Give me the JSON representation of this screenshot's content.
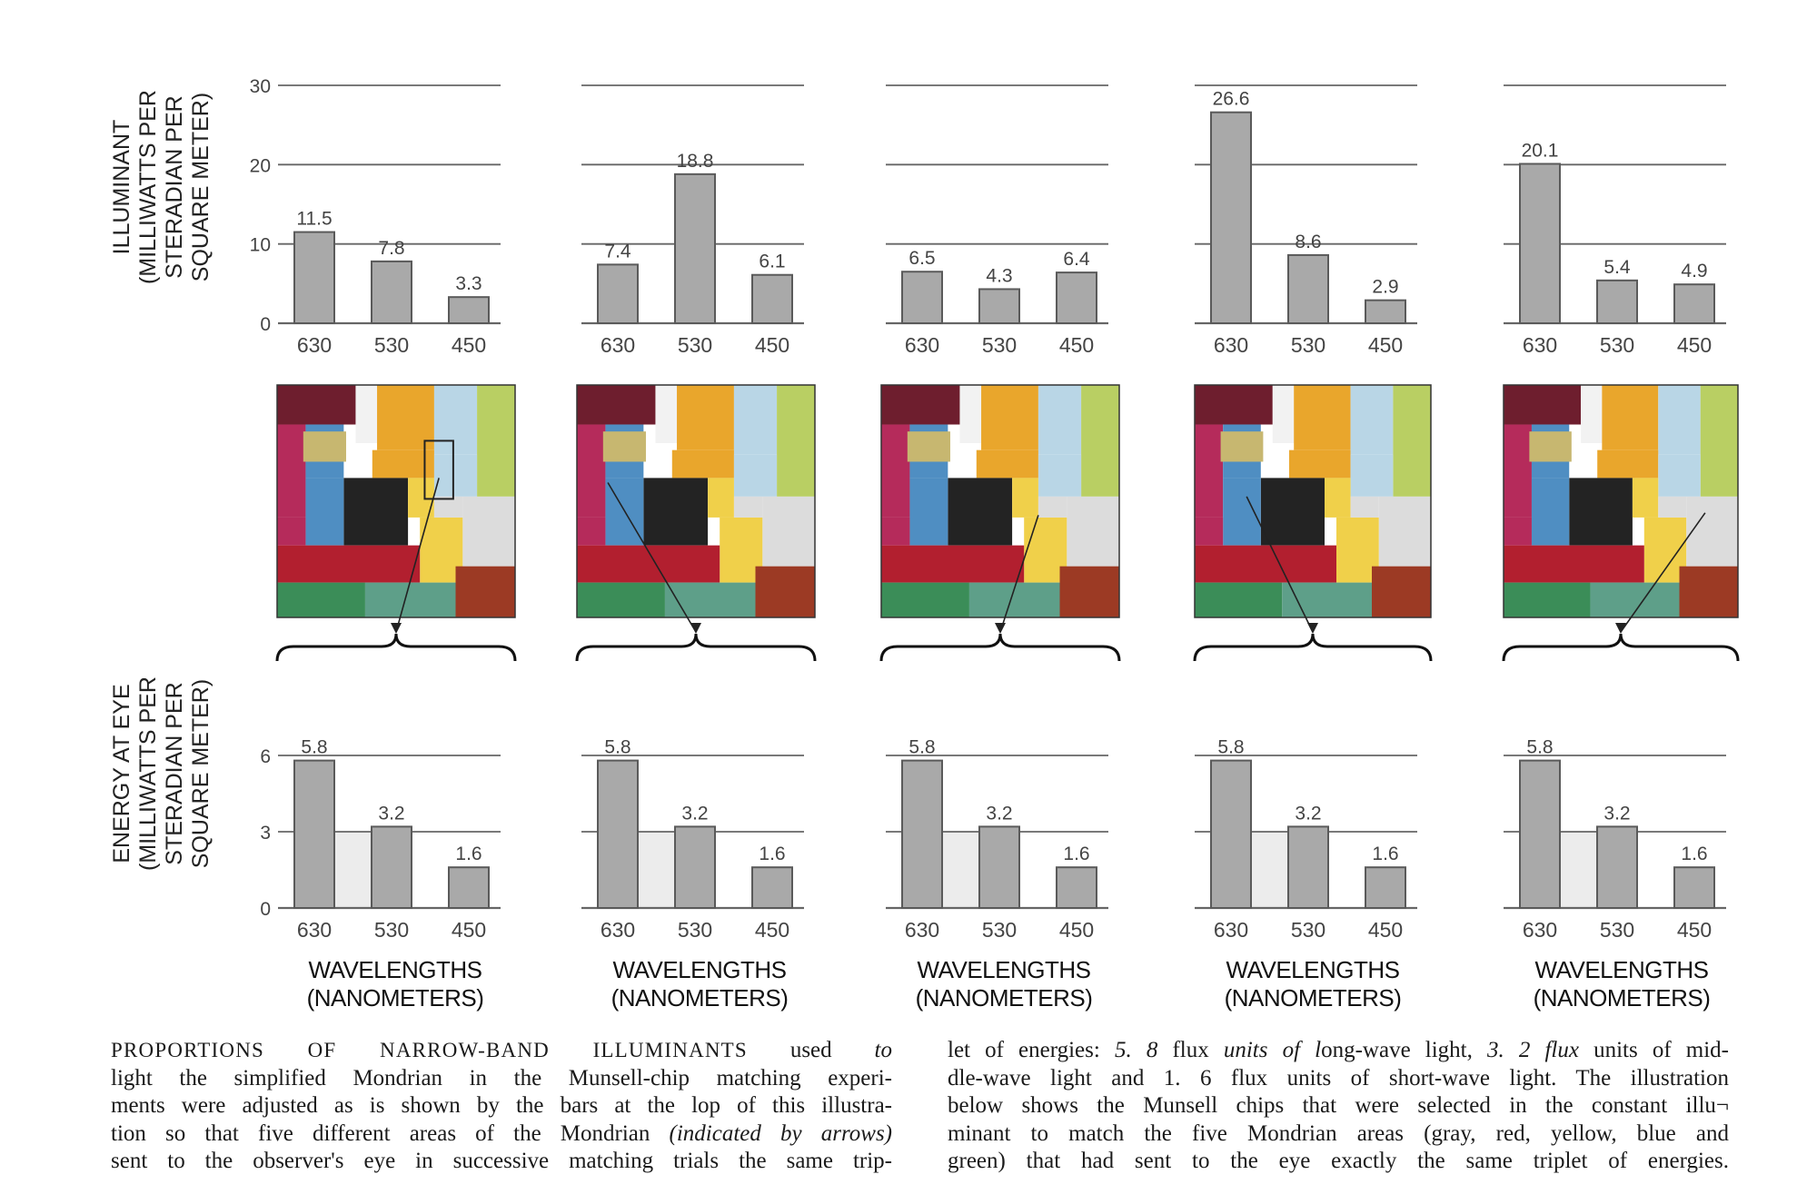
{
  "chart_data": [
    {
      "type": "bar",
      "panel": 1,
      "categories": [
        "630",
        "530",
        "450"
      ],
      "values": [
        11.5,
        7.8,
        3.3
      ],
      "data_labels": [
        "11.5",
        "7.8",
        "3.3"
      ],
      "yticks": [
        "30",
        "20",
        "10",
        "0"
      ],
      "ylim": [
        0,
        30
      ]
    },
    {
      "type": "bar",
      "panel": 2,
      "categories": [
        "630",
        "530",
        "450"
      ],
      "values": [
        7.4,
        18.8,
        6.1
      ],
      "data_labels": [
        "7.4",
        "18.8",
        "6.1"
      ],
      "ylim": [
        0,
        30
      ]
    },
    {
      "type": "bar",
      "panel": 3,
      "categories": [
        "630",
        "530",
        "450"
      ],
      "values": [
        6.5,
        4.3,
        6.4
      ],
      "data_labels": [
        "6.5",
        "4.3",
        "6.4"
      ],
      "ylim": [
        0,
        30
      ]
    },
    {
      "type": "bar",
      "panel": 4,
      "categories": [
        "630",
        "530",
        "450"
      ],
      "values": [
        26.6,
        8.6,
        2.9
      ],
      "data_labels": [
        "26.6",
        "8.6",
        "2.9"
      ],
      "ylim": [
        0,
        30
      ]
    },
    {
      "type": "bar",
      "panel": 5,
      "categories": [
        "630",
        "530",
        "450"
      ],
      "values": [
        20.1,
        5.4,
        4.9
      ],
      "data_labels": [
        "20.1",
        "5.4",
        "4.9"
      ],
      "ylim": [
        0,
        30
      ]
    },
    {
      "type": "bar",
      "panel": 6,
      "categories": [
        "630",
        "530",
        "450"
      ],
      "values": [
        5.8,
        3.2,
        1.6
      ],
      "data_labels": [
        "5.8",
        "3.2",
        "1.6"
      ],
      "yticks": [
        "6",
        "3",
        "0"
      ],
      "ylim": [
        0,
        6
      ]
    },
    {
      "type": "bar",
      "panel": 7,
      "categories": [
        "630",
        "530",
        "450"
      ],
      "values": [
        5.8,
        3.2,
        1.6
      ],
      "data_labels": [
        "5.8",
        "3.2",
        "1.6"
      ],
      "ylim": [
        0,
        6
      ]
    },
    {
      "type": "bar",
      "panel": 8,
      "categories": [
        "630",
        "530",
        "450"
      ],
      "values": [
        5.8,
        3.2,
        1.6
      ],
      "data_labels": [
        "5.8",
        "3.2",
        "1.6"
      ],
      "ylim": [
        0,
        6
      ]
    },
    {
      "type": "bar",
      "panel": 9,
      "categories": [
        "630",
        "530",
        "450"
      ],
      "values": [
        5.8,
        3.2,
        1.6
      ],
      "data_labels": [
        "5.8",
        "3.2",
        "1.6"
      ],
      "ylim": [
        0,
        6
      ]
    },
    {
      "type": "bar",
      "panel": 10,
      "categories": [
        "630",
        "530",
        "450"
      ],
      "values": [
        5.8,
        3.2,
        1.6
      ],
      "data_labels": [
        "5.8",
        "3.2",
        "1.6"
      ],
      "ylim": [
        0,
        6
      ]
    }
  ],
  "labels": {
    "illuminant_axis": [
      "ILLUMINANT",
      "(MILLIWATTS PER",
      "STERADIAN PER",
      "SQUARE METER)"
    ],
    "energy_axis": [
      "ENERGY AT EYE",
      "(MILLIWATTS PER",
      "STERADIAN PER",
      "SQUARE METER)"
    ],
    "wavelengths": [
      "WAVELENGTHS",
      "(NANOMETERS)"
    ]
  },
  "colors": {
    "bar": "#a9a9a9",
    "bar_edge": "#5a5a5a",
    "grid": "#666666",
    "shade": "#ececec",
    "mondrian": {
      "maroon": "#6e1e2e",
      "magenta": "#b52b5b",
      "blue": "#4f8ec2",
      "white": "#f2f2f2",
      "orange": "#e9a62c",
      "light_blue": "#b9d6e6",
      "yellow_green": "#b9cf63",
      "khaki": "#c7b770",
      "black": "#232323",
      "yellow": "#f0d04a",
      "light_gray": "#dcdcdc",
      "red": "#b21f2f",
      "green": "#3b8d58",
      "teal": "#5e9f89",
      "brown": "#9c3a24"
    }
  },
  "caption": {
    "left": [
      [
        {
          "t": "PROPORTIONS OF NARROW-BAND ILLUMINANTS",
          "s": "sc"
        },
        {
          "t": " used "
        },
        {
          "t": "to",
          "s": "i"
        }
      ],
      [
        {
          "t": "light the simplified Mondrian in the Munsell-chip matching experi-"
        }
      ],
      [
        {
          "t": "ments were adjusted as is shown by the bars at the lop of this illustra-"
        }
      ],
      [
        {
          "t": "tion so that five different areas of the Mondrian "
        },
        {
          "t": "(indicated by arrows)",
          "s": "i"
        }
      ],
      [
        {
          "t": "sent to the observer's eye in successive matching trials the same trip-"
        }
      ]
    ],
    "right": [
      [
        {
          "t": "let of energies: "
        },
        {
          "t": "5. 8",
          "s": "i"
        },
        {
          "t": " flux "
        },
        {
          "t": "units of l",
          "s": "i"
        },
        {
          "t": "ong-wave light, "
        },
        {
          "t": "3. 2 flux",
          "s": "i"
        },
        {
          "t": " units of mid-"
        }
      ],
      [
        {
          "t": "dle-wave light and 1. 6 flux units of short-wave light. The illustration"
        }
      ],
      [
        {
          "t": "below shows the Munsell chips that were selected in the constant illu¬"
        }
      ],
      [
        {
          "t": "minant to match the five Mondrian areas (gray, red, yellow, blue and"
        }
      ],
      [
        {
          "t": "green) that had sent to the eye exactly the same triplet of energies."
        }
      ]
    ]
  }
}
